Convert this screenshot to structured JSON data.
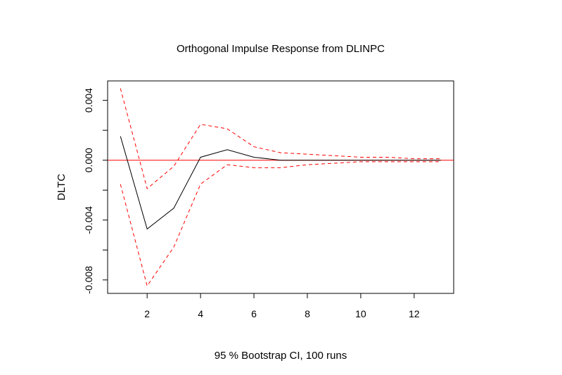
{
  "chart_data": {
    "type": "line",
    "title": "Orthogonal Impulse Response from DLINPC",
    "xlabel": "95 % Bootstrap CI,  100 runs",
    "ylabel": "DLTC",
    "xlim": [
      0.52,
      13.48
    ],
    "ylim": [
      -0.0089,
      0.0053
    ],
    "x_ticks": [
      2,
      4,
      6,
      8,
      10,
      12
    ],
    "x_tick_labels": [
      "2",
      "4",
      "6",
      "8",
      "10",
      "12"
    ],
    "y_ticks": [
      -0.008,
      -0.006,
      -0.004,
      -0.002,
      0.0,
      0.002,
      0.004
    ],
    "y_tick_labels": [
      "-0.008",
      "",
      "-0.004",
      "",
      "0.000",
      "",
      "0.004"
    ],
    "zero_line": 0,
    "grid": false,
    "x": [
      1,
      2,
      3,
      4,
      5,
      6,
      7,
      8,
      9,
      10,
      11,
      12,
      13
    ],
    "series": [
      {
        "role": "irf",
        "color": "#000000",
        "dash": "solid",
        "values": [
          0.0016,
          -0.0046,
          -0.0032,
          0.0002,
          0.0007,
          0.0002,
          0.0,
          0.0,
          0.0,
          0.0,
          0.0,
          0.0,
          0.0
        ]
      },
      {
        "role": "upper",
        "color": "#ff0000",
        "dash": "dashed",
        "values": [
          0.0048,
          -0.0019,
          -0.0004,
          0.0024,
          0.0021,
          0.0009,
          0.0005,
          0.0004,
          0.0003,
          0.0002,
          0.0002,
          0.0001,
          0.0001
        ]
      },
      {
        "role": "lower",
        "color": "#ff0000",
        "dash": "dashed",
        "values": [
          -0.0016,
          -0.0084,
          -0.0058,
          -0.0016,
          -0.0003,
          -0.0005,
          -0.0005,
          -0.0003,
          -0.0002,
          -0.0001,
          -0.0001,
          -0.0001,
          -0.0001
        ]
      }
    ]
  }
}
